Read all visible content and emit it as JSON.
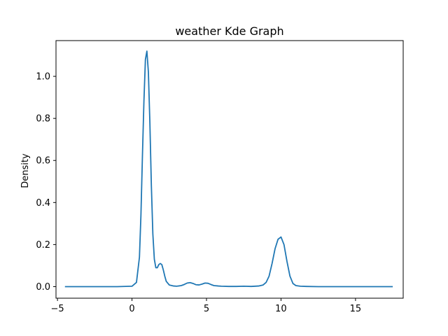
{
  "chart_data": {
    "type": "line",
    "title": "weather Kde Graph",
    "xlabel": "",
    "ylabel": "Density",
    "xlim": [
      -5.1,
      18.2
    ],
    "ylim": [
      -0.055,
      1.17
    ],
    "x_ticks": [
      -5,
      0,
      5,
      10,
      15
    ],
    "y_ticks": [
      0.0,
      0.2,
      0.4,
      0.6,
      0.8,
      1.0
    ],
    "x_tick_labels": [
      "−5",
      "0",
      "5",
      "10",
      "15"
    ],
    "y_tick_labels": [
      "0.0",
      "0.2",
      "0.4",
      "0.6",
      "0.8",
      "1.0"
    ],
    "grid": false,
    "series": [
      {
        "color": "#1f77b4",
        "x": [
          -4.5,
          -3.0,
          -1.0,
          0.0,
          0.3,
          0.5,
          0.6,
          0.7,
          0.8,
          0.9,
          1.0,
          1.1,
          1.2,
          1.3,
          1.4,
          1.5,
          1.6,
          1.7,
          1.8,
          1.9,
          2.0,
          2.1,
          2.2,
          2.3,
          2.5,
          2.8,
          3.0,
          3.3,
          3.5,
          3.7,
          3.9,
          4.1,
          4.3,
          4.5,
          4.7,
          4.9,
          5.1,
          5.3,
          5.5,
          5.8,
          6.0,
          6.5,
          7.0,
          7.5,
          8.0,
          8.5,
          8.8,
          9.0,
          9.2,
          9.4,
          9.6,
          9.8,
          10.0,
          10.2,
          10.4,
          10.6,
          10.8,
          11.0,
          11.3,
          11.7,
          12.5,
          14.0,
          16.0,
          17.5
        ],
        "y": [
          0.0,
          0.0,
          0.0,
          0.002,
          0.02,
          0.14,
          0.34,
          0.62,
          0.88,
          1.08,
          1.12,
          1.02,
          0.78,
          0.48,
          0.25,
          0.13,
          0.09,
          0.09,
          0.105,
          0.11,
          0.105,
          0.08,
          0.05,
          0.025,
          0.008,
          0.003,
          0.002,
          0.005,
          0.01,
          0.017,
          0.019,
          0.015,
          0.009,
          0.008,
          0.012,
          0.017,
          0.016,
          0.01,
          0.005,
          0.003,
          0.002,
          0.001,
          0.001,
          0.002,
          0.001,
          0.003,
          0.008,
          0.02,
          0.05,
          0.11,
          0.18,
          0.225,
          0.236,
          0.2,
          0.12,
          0.05,
          0.015,
          0.005,
          0.002,
          0.001,
          0.0,
          0.0,
          0.0,
          0.0
        ]
      }
    ]
  }
}
